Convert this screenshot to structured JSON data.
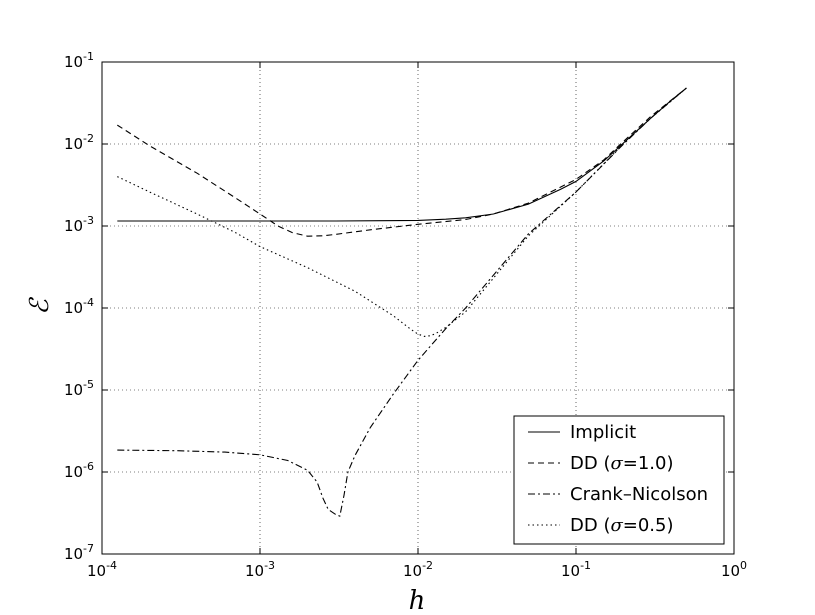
{
  "chart_data": {
    "type": "line",
    "xscale": "log",
    "yscale": "log",
    "xlim": [
      0.0001,
      1
    ],
    "ylim": [
      1e-07,
      0.1
    ],
    "xlabel": "h",
    "ylabel": "ℰ",
    "grid": true,
    "legend_position": "lower-right",
    "x_ticks": [
      {
        "base": "10",
        "exp": "-4",
        "value": 0.0001
      },
      {
        "base": "10",
        "exp": "-3",
        "value": 0.001
      },
      {
        "base": "10",
        "exp": "-2",
        "value": 0.01
      },
      {
        "base": "10",
        "exp": "-1",
        "value": 0.1
      },
      {
        "base": "10",
        "exp": "0",
        "value": 1
      }
    ],
    "y_ticks": [
      {
        "base": "10",
        "exp": "-7",
        "value": 1e-07
      },
      {
        "base": "10",
        "exp": "-6",
        "value": 1e-06
      },
      {
        "base": "10",
        "exp": "-5",
        "value": 1e-05
      },
      {
        "base": "10",
        "exp": "-4",
        "value": 0.0001
      },
      {
        "base": "10",
        "exp": "-3",
        "value": 0.001
      },
      {
        "base": "10",
        "exp": "-2",
        "value": 0.01
      },
      {
        "base": "10",
        "exp": "-1",
        "value": 0.1
      }
    ],
    "series": [
      {
        "name": "Implicit",
        "label_parts": [
          "Implicit"
        ],
        "dash": "solid",
        "x": [
          0.000125,
          0.0005,
          0.001,
          0.003,
          0.006,
          0.01,
          0.015,
          0.02,
          0.03,
          0.05,
          0.08,
          0.1,
          0.15,
          0.2,
          0.3,
          0.4,
          0.5
        ],
        "y": [
          0.00115,
          0.00115,
          0.00115,
          0.00115,
          0.00116,
          0.00117,
          0.00121,
          0.00126,
          0.0014,
          0.00185,
          0.0028,
          0.0035,
          0.0062,
          0.0103,
          0.021,
          0.034,
          0.048
        ]
      },
      {
        "name": "DD (σ=1.0)",
        "label_parts": [
          "DD (",
          "σ",
          "=1.0)"
        ],
        "dash": "dashed",
        "x": [
          0.000125,
          0.0002,
          0.0004,
          0.0007,
          0.001,
          0.0013,
          0.0016,
          0.002,
          0.0025,
          0.003,
          0.005,
          0.01,
          0.02,
          0.03,
          0.05,
          0.1,
          0.15,
          0.2,
          0.3,
          0.5
        ],
        "y": [
          0.017,
          0.0095,
          0.0044,
          0.0022,
          0.0014,
          0.001,
          0.00083,
          0.00075,
          0.00076,
          0.00079,
          0.0009,
          0.00105,
          0.0012,
          0.0014,
          0.0019,
          0.0037,
          0.0064,
          0.0108,
          0.022,
          0.048
        ]
      },
      {
        "name": "Crank–Nicolson",
        "label_parts": [
          "Crank–Nicolson"
        ],
        "dash": "dashdot",
        "x": [
          0.000125,
          0.0003,
          0.0006,
          0.001,
          0.0015,
          0.002,
          0.0023,
          0.0025,
          0.0027,
          0.003,
          0.0032,
          0.0034,
          0.0036,
          0.004,
          0.005,
          0.007,
          0.01,
          0.015,
          0.02,
          0.05,
          0.1,
          0.2,
          0.3,
          0.5
        ],
        "y": [
          1.85e-06,
          1.82e-06,
          1.75e-06,
          1.62e-06,
          1.38e-06,
          1.05e-06,
          7.5e-07,
          4.8e-07,
          3.5e-07,
          3.05e-07,
          2.9e-07,
          5.2e-07,
          1e-06,
          1.6e-06,
          3.5e-06,
          9e-06,
          2.3e-05,
          5.6e-05,
          0.0001,
          0.0008,
          0.0026,
          0.01,
          0.021,
          0.048
        ]
      },
      {
        "name": "DD (σ=0.5)",
        "label_parts": [
          "DD (",
          "σ",
          "=0.5)"
        ],
        "dash": "dotted",
        "x": [
          0.000125,
          0.0002,
          0.0004,
          0.0007,
          0.001,
          0.002,
          0.004,
          0.007,
          0.009,
          0.01,
          0.011,
          0.012,
          0.013,
          0.015,
          0.02,
          0.05,
          0.1,
          0.2,
          0.3,
          0.5
        ],
        "y": [
          0.004,
          0.0026,
          0.0014,
          0.00083,
          0.00056,
          0.00031,
          0.00016,
          8e-05,
          5.5e-05,
          4.8e-05,
          4.5e-05,
          4.6e-05,
          4.9e-05,
          5.8e-05,
          9e-05,
          0.00076,
          0.0026,
          0.0101,
          0.021,
          0.048
        ]
      }
    ]
  }
}
